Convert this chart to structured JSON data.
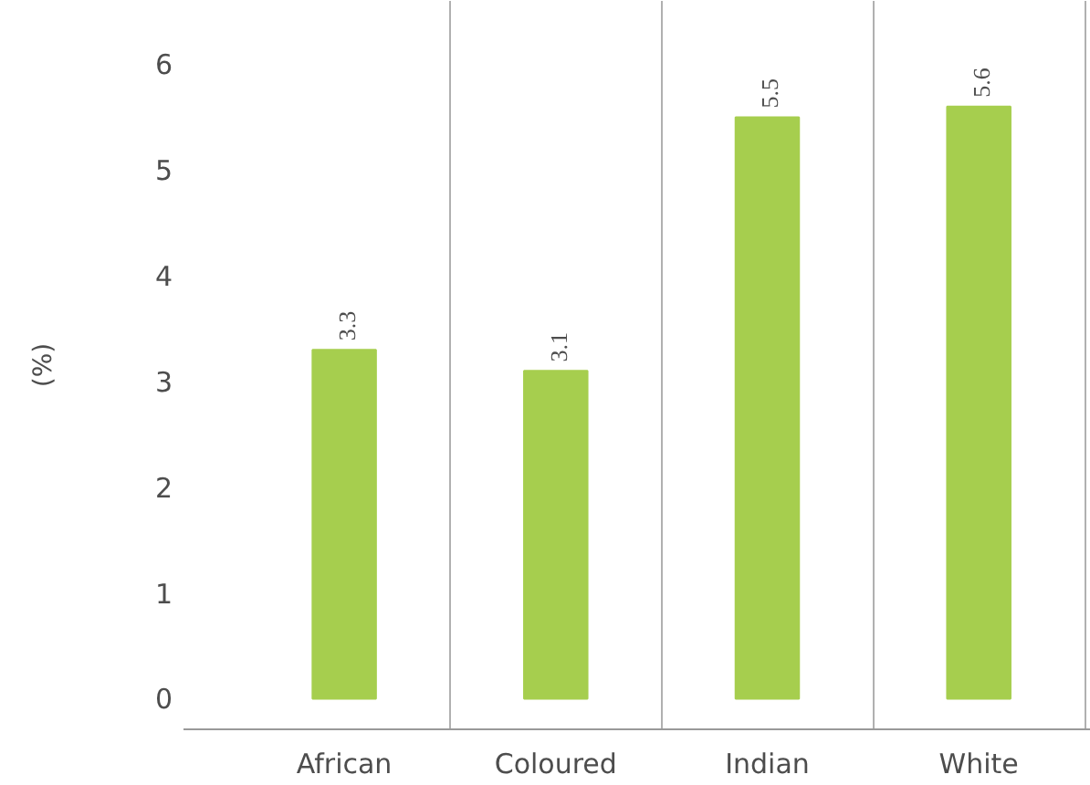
{
  "chart_data": {
    "type": "bar",
    "ylabel": "(%)",
    "categories": [
      "African",
      "Coloured",
      "Indian",
      "White"
    ],
    "values": [
      3.3,
      3.1,
      5.5,
      5.6
    ],
    "color": "#a6ce4e",
    "ylim": [
      -0.29,
      6.6
    ],
    "yticks": [
      0,
      1,
      2,
      3,
      4,
      5,
      6
    ],
    "grid": "x",
    "data_labels": true
  }
}
